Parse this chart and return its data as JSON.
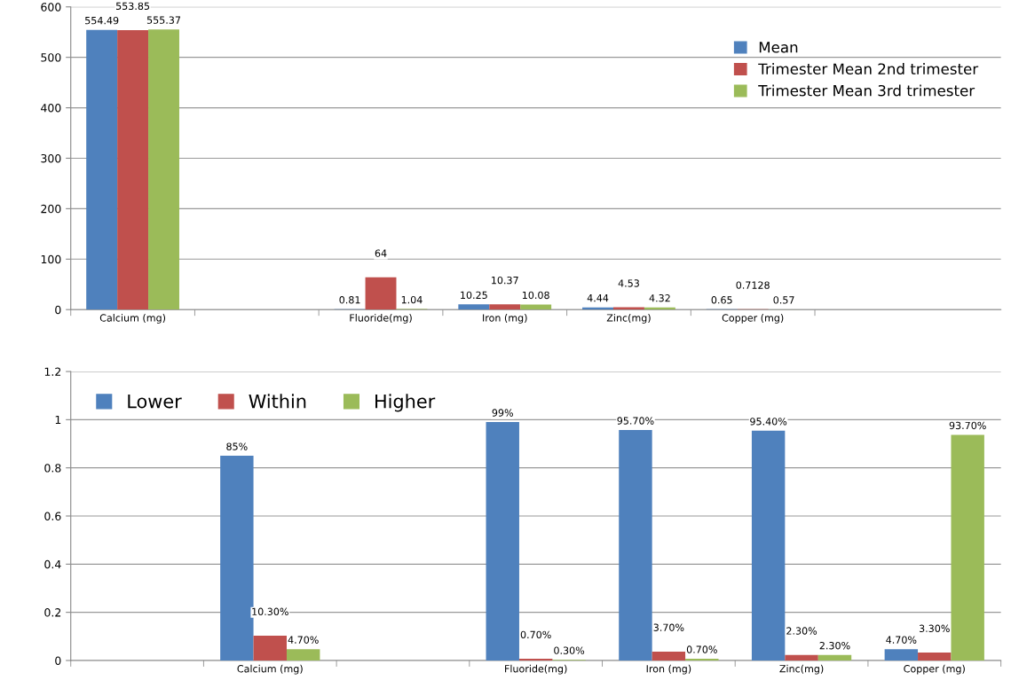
{
  "chart_data": [
    {
      "type": "bar",
      "categories": [
        "Calcium (mg)",
        null,
        "Fluoride(mg)",
        "Iron (mg)",
        "Zinc(mg)",
        "Copper (mg)"
      ],
      "series": [
        {
          "name": "Mean",
          "color": "#4f81bd",
          "values": [
            554.49,
            null,
            0.81,
            10.25,
            4.44,
            0.65
          ]
        },
        {
          "name": "Trimester Mean 2nd trimester",
          "color": "#c0504d",
          "values": [
            553.85,
            null,
            64,
            10.37,
            4.53,
            0.7128
          ]
        },
        {
          "name": "Trimester Mean 3rd trimester",
          "color": "#9bbb59",
          "values": [
            555.37,
            null,
            1.04,
            10.08,
            4.32,
            0.57
          ]
        }
      ],
      "ylim": [
        0,
        600
      ],
      "yticks": [
        0,
        100,
        200,
        300,
        400,
        500,
        600
      ],
      "grid": "y",
      "legend": "top right",
      "data_labels": true
    },
    {
      "type": "bar",
      "categories": [
        null,
        "Calcium (mg)",
        null,
        "Fluoride(mg)",
        "Iron (mg)",
        "Zinc(mg)",
        "Copper (mg)"
      ],
      "series": [
        {
          "name": "Lower",
          "color": "#4f81bd",
          "values": [
            null,
            0.85,
            null,
            0.99,
            0.957,
            0.954,
            0.047
          ],
          "value_labels": [
            null,
            "85%",
            null,
            "99%",
            "95.70%",
            "95.40%",
            "4.70%"
          ]
        },
        {
          "name": "Within",
          "color": "#c0504d",
          "values": [
            null,
            0.103,
            null,
            0.007,
            0.037,
            0.023,
            0.033
          ],
          "value_labels": [
            null,
            "10.30%",
            null,
            "0.70%",
            "3.70%",
            "2.30%",
            "3.30%"
          ]
        },
        {
          "name": "Higher",
          "color": "#9bbb59",
          "values": [
            null,
            0.047,
            null,
            0.003,
            0.007,
            0.023,
            0.937
          ],
          "value_labels": [
            null,
            "4.70%",
            null,
            "0.30%",
            "0.70%",
            "2.30%",
            "93.70%"
          ]
        }
      ],
      "ylim": [
        0,
        1.2
      ],
      "yticks": [
        0,
        0.2,
        0.4,
        0.6,
        0.8,
        1,
        1.2
      ],
      "grid": "y",
      "legend": "top left"
    }
  ]
}
